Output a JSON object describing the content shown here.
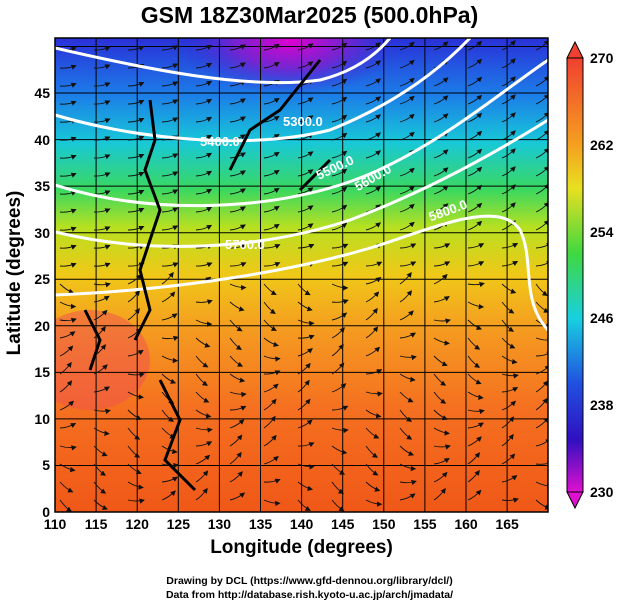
{
  "title": "GSM 18Z30Mar2025 (500.0hPa)",
  "x_axis": {
    "label": "Longitude (degrees)",
    "ticks": [
      "110",
      "115",
      "120",
      "125",
      "130",
      "135",
      "140",
      "145",
      "150",
      "155",
      "160",
      "165"
    ]
  },
  "y_axis": {
    "label": "Latitude  (degrees)",
    "ticks": [
      "0",
      "5",
      "10",
      "15",
      "20",
      "25",
      "30",
      "35",
      "40",
      "45"
    ]
  },
  "colorbar": {
    "ticks": [
      "270",
      "262",
      "254",
      "246",
      "238",
      "230"
    ],
    "range": [
      230,
      270
    ]
  },
  "contour_labels": [
    "5300.0",
    "5400.0",
    "5500.0",
    "5600.0",
    "5700.0",
    "5800.0"
  ],
  "credits": {
    "line1": "Drawing by DCL (https://www.gfd-dennou.org/library/dcl/)",
    "line2": "Data from http://database.rish.kyoto-u.ac.jp/arch/jmadata/"
  }
}
